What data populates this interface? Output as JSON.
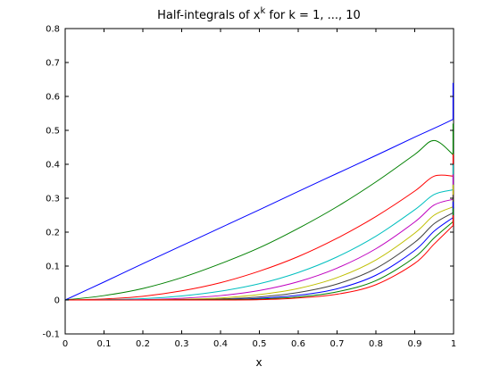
{
  "chart_data": {
    "type": "line",
    "title_prefix": "Half-integrals of x",
    "title_superscript": "k",
    "title_suffix": " for k = 1, ..., 10",
    "xlabel": "x",
    "ylabel": "",
    "xlim": [
      0,
      1
    ],
    "ylim": [
      -0.1,
      0.8
    ],
    "xticks": [
      0,
      0.1,
      0.2,
      0.3,
      0.4,
      0.5,
      0.6,
      0.7,
      0.8,
      0.9,
      1
    ],
    "xtick_labels": [
      "0",
      "0.1",
      "0.2",
      "0.3",
      "0.4",
      "0.5",
      "0.6",
      "0.7",
      "0.8",
      "0.9",
      "1"
    ],
    "yticks": [
      -0.1,
      0,
      0.1,
      0.2,
      0.3,
      0.4,
      0.5,
      0.6,
      0.7,
      0.8
    ],
    "ytick_labels": [
      "-0.1",
      "0",
      "0.1",
      "0.2",
      "0.3",
      "0.4",
      "0.5",
      "0.6",
      "0.7",
      "0.8"
    ],
    "grid": false,
    "legend": "none",
    "x": [
      0,
      0.1,
      0.2,
      0.3,
      0.4,
      0.5,
      0.6,
      0.7,
      0.8,
      0.9,
      0.95,
      1.0
    ],
    "series": [
      {
        "color": "#0000ff",
        "values": [
          0,
          0.053,
          0.107,
          0.16,
          0.213,
          0.266,
          0.32,
          0.373,
          0.426,
          0.48,
          0.506,
          0.533
        ]
      },
      {
        "color": "#008000",
        "values": [
          0,
          0.013,
          0.034,
          0.066,
          0.107,
          0.154,
          0.211,
          0.275,
          0.348,
          0.429,
          0.47,
          0.427
        ]
      },
      {
        "color": "#ff0000",
        "values": [
          0,
          0.003,
          0.011,
          0.027,
          0.051,
          0.085,
          0.128,
          0.182,
          0.246,
          0.321,
          0.365,
          0.365
        ]
      },
      {
        "color": "#00bfbf",
        "values": [
          0,
          0.001,
          0.004,
          0.012,
          0.026,
          0.048,
          0.081,
          0.127,
          0.188,
          0.266,
          0.311,
          0.325
        ]
      },
      {
        "color": "#bf00bf",
        "values": [
          0,
          0.0,
          0.001,
          0.005,
          0.013,
          0.028,
          0.054,
          0.094,
          0.151,
          0.23,
          0.28,
          0.297
        ]
      },
      {
        "color": "#bfbf00",
        "values": [
          0,
          0.0,
          0.0,
          0.002,
          0.006,
          0.016,
          0.034,
          0.066,
          0.118,
          0.197,
          0.25,
          0.275
        ]
      },
      {
        "color": "#404040",
        "values": [
          0,
          0.0,
          0.0,
          0.001,
          0.003,
          0.009,
          0.022,
          0.047,
          0.093,
          0.17,
          0.225,
          0.258
        ]
      },
      {
        "color": "#0000ff",
        "values": [
          0,
          0.0,
          0.0,
          0.0,
          0.001,
          0.005,
          0.014,
          0.033,
          0.073,
          0.146,
          0.203,
          0.244
        ]
      },
      {
        "color": "#008000",
        "values": [
          0,
          0.0,
          0.0,
          0.0,
          0.001,
          0.003,
          0.009,
          0.024,
          0.057,
          0.126,
          0.183,
          0.232
        ]
      },
      {
        "color": "#ff0000",
        "values": [
          0,
          0.0,
          0.0,
          0.0,
          0.0,
          0.001,
          0.006,
          0.017,
          0.045,
          0.108,
          0.165,
          0.221
        ]
      }
    ],
    "endpoint_spikes": [
      {
        "color": "#0000ff",
        "from": 0.533,
        "to": 0.64
      },
      {
        "color": "#008000",
        "from": 0.427,
        "to": 0.52
      },
      {
        "color": "#ff0000",
        "from": 0.365,
        "to": 0.43
      },
      {
        "color": "#00bfbf",
        "from": 0.325,
        "to": 0.4
      },
      {
        "color": "#bf00bf",
        "from": 0.297,
        "to": 0.37
      },
      {
        "color": "#bfbf00",
        "from": 0.275,
        "to": 0.34
      },
      {
        "color": "#404040",
        "from": 0.258,
        "to": 0.31
      },
      {
        "color": "#0000ff",
        "from": 0.244,
        "to": 0.29
      },
      {
        "color": "#008000",
        "from": 0.232,
        "to": 0.27
      },
      {
        "color": "#ff0000",
        "from": 0.221,
        "to": 0.25
      }
    ]
  }
}
